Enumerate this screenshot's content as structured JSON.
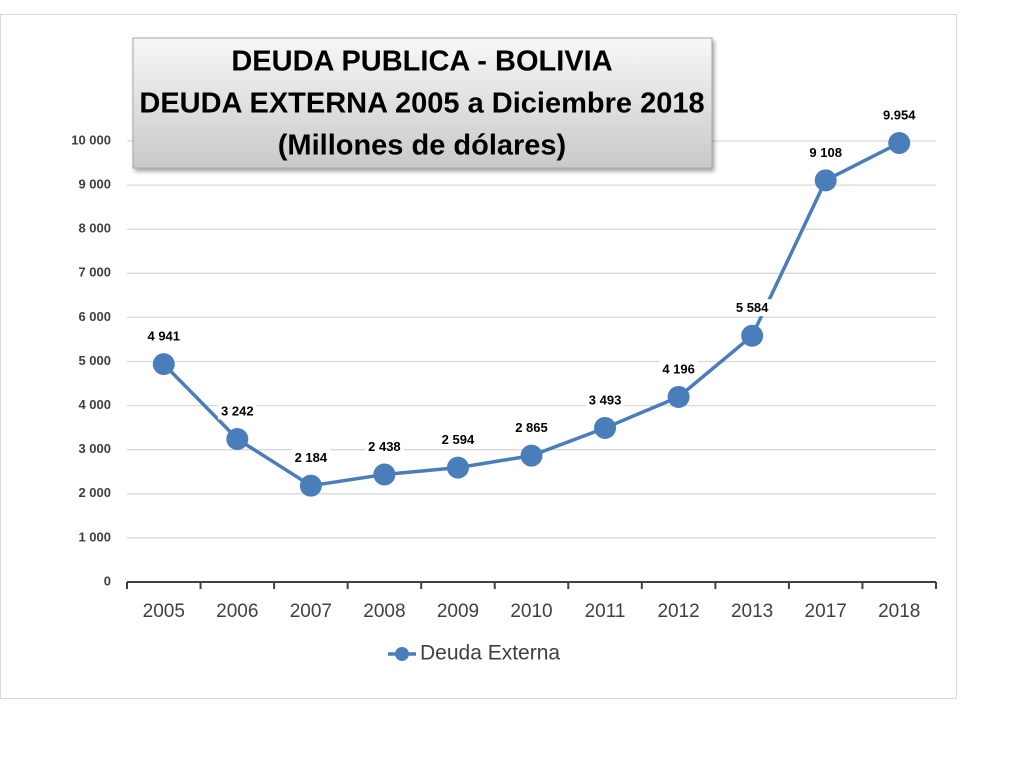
{
  "chart_data": {
    "type": "line",
    "title": [
      "DEUDA PUBLICA - BOLIVIA",
      "DEUDA EXTERNA 2005 a Diciembre 2018",
      "(Millones de dólares)"
    ],
    "categories": [
      "2005",
      "2006",
      "2007",
      "2008",
      "2009",
      "2010",
      "2011",
      "2012",
      "2013",
      "2017",
      "2018"
    ],
    "series": [
      {
        "name": "Deuda Externa",
        "color": "#4a7ebb",
        "values": [
          4941,
          3242,
          2184,
          2438,
          2594,
          2865,
          3493,
          4196,
          5584,
          9108,
          9954
        ],
        "value_labels": [
          "4 941",
          "3 242",
          "2 184",
          "2 438",
          "2 594",
          "2 865",
          "3 493",
          "4 196",
          "5 584",
          "9 108",
          "9.954"
        ]
      }
    ],
    "ylim": [
      0,
      10000
    ],
    "yticks": [
      0,
      {
        "value": 1000,
        "label": "1 000"
      },
      {
        "value": 2000,
        "label": "2 000"
      },
      {
        "value": 3000,
        "label": "3 000"
      },
      {
        "value": 4000,
        "label": "4 000"
      },
      {
        "value": 5000,
        "label": "5 000"
      },
      {
        "value": 6000,
        "label": "6 000"
      },
      {
        "value": 7000,
        "label": "7 000"
      },
      {
        "value": 8000,
        "label": "8 000"
      },
      {
        "value": 9000,
        "label": "9 000"
      },
      {
        "value": 10000,
        "label": "10 000"
      }
    ],
    "grid": true,
    "legend": "bottom"
  }
}
